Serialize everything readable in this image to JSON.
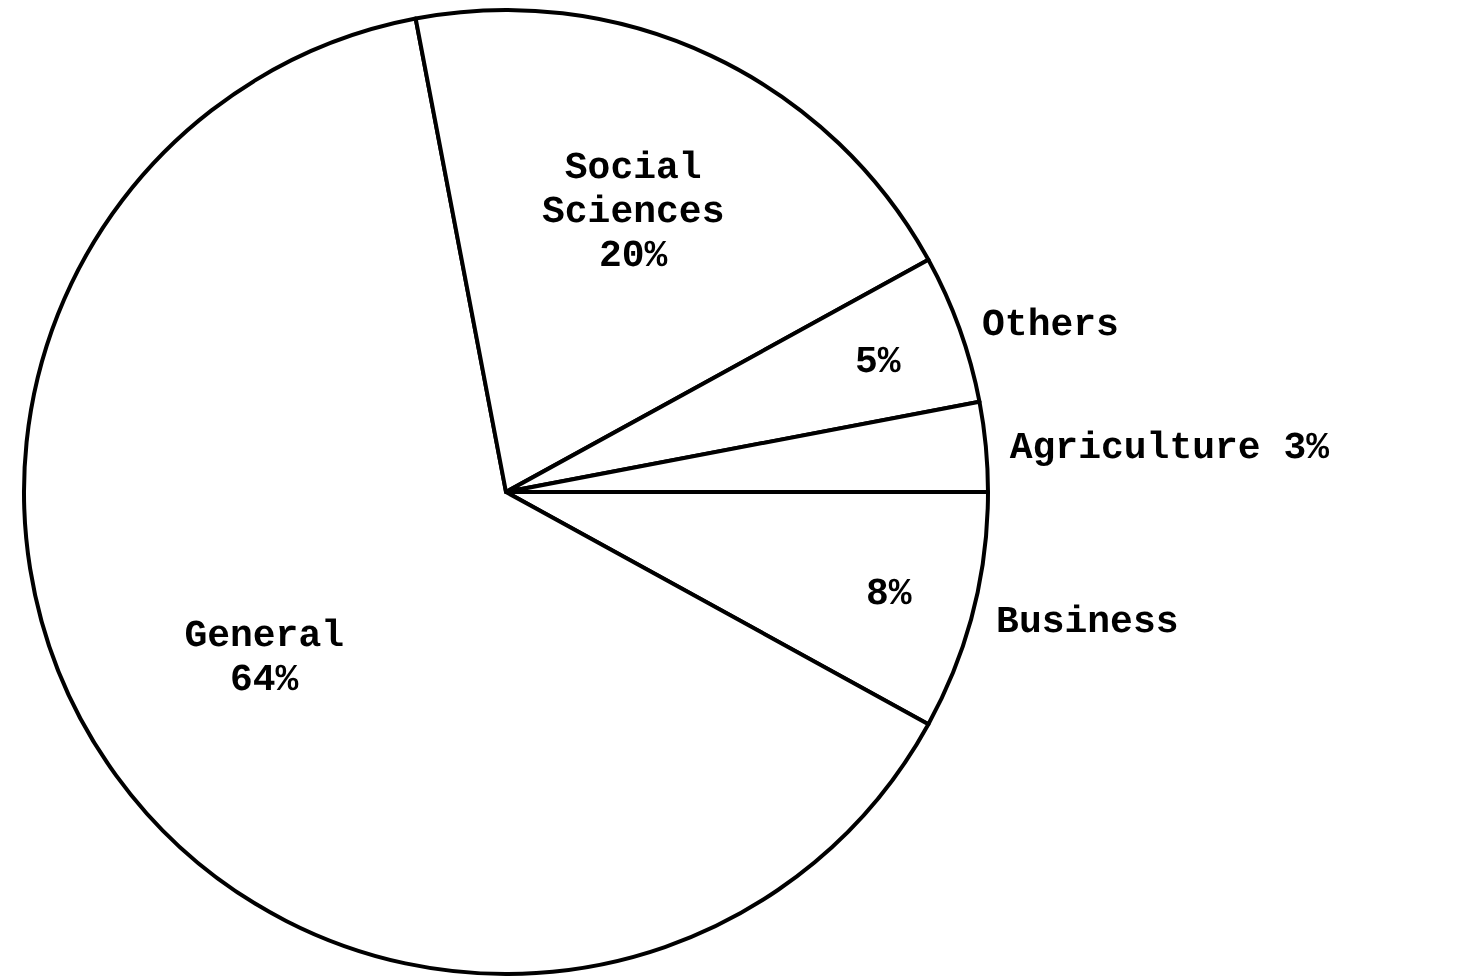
{
  "chart_data": {
    "type": "pie",
    "categories": [
      "Business",
      "General",
      "Social Sciences",
      "Others",
      "Agriculture"
    ],
    "values": [
      8,
      64,
      20,
      5,
      3
    ],
    "value_labels": [
      "8%",
      "64%",
      "20%",
      "5%",
      "3%"
    ],
    "colors": [
      "#ffffff",
      "#ffffff",
      "#ffffff",
      "#ffffff",
      "#ffffff"
    ]
  }
}
